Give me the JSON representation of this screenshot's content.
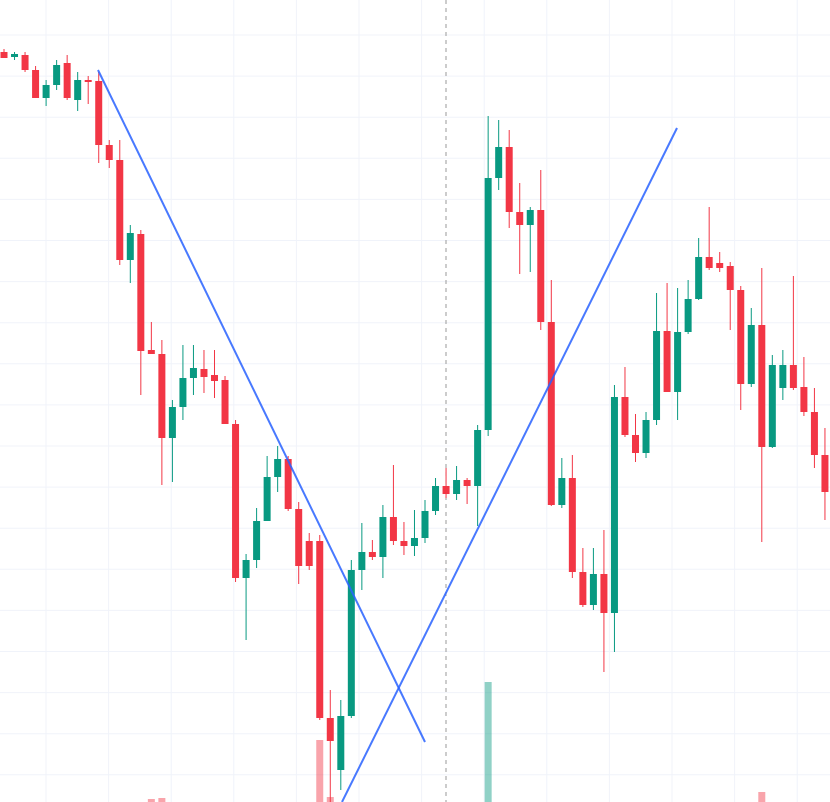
{
  "chart_data": {
    "type": "candlestick",
    "up_color": "#089981",
    "down_color": "#f23645",
    "grid": true,
    "ylim": [
      0,
      802
    ],
    "open": [
      750,
      745,
      747,
      732,
      704,
      717,
      739,
      702,
      722,
      721,
      657,
      642,
      542,
      568,
      452,
      448,
      364,
      395,
      424,
      433,
      427,
      422,
      378,
      224,
      242,
      281,
      325,
      343,
      293,
      261,
      261,
      84,
      32,
      86,
      232,
      250,
      245,
      285,
      261,
      256,
      264,
      291,
      316,
      308,
      322,
      316,
      372,
      624,
      655,
      590,
      577,
      592,
      480,
      297,
      324,
      230,
      197,
      228,
      189,
      405,
      367,
      349,
      382,
      471,
      410,
      470,
      503,
      545,
      539,
      536,
      512,
      418,
      477,
      355,
      414,
      437,
      415,
      390,
      347
    ],
    "high": [
      753,
      750,
      750,
      736,
      722,
      742,
      747,
      730,
      726,
      730,
      662,
      662,
      577,
      572,
      480,
      462,
      402,
      457,
      457,
      452,
      452,
      426,
      382,
      248,
      294,
      346,
      356,
      346,
      300,
      269,
      267,
      112,
      102,
      242,
      279,
      262,
      297,
      337,
      280,
      292,
      302,
      324,
      334,
      336,
      324,
      377,
      686,
      682,
      672,
      619,
      595,
      632,
      522,
      344,
      347,
      254,
      254,
      272,
      417,
      435,
      388,
      390,
      509,
      519,
      514,
      522,
      564,
      595,
      550,
      540,
      516,
      494,
      534,
      447,
      452,
      526,
      445,
      414,
      374
    ],
    "low": [
      744,
      742,
      730,
      704,
      696,
      712,
      702,
      691,
      698,
      639,
      634,
      537,
      519,
      407,
      448,
      317,
      320,
      382,
      407,
      409,
      404,
      378,
      220,
      162,
      234,
      281,
      310,
      291,
      218,
      232,
      82,
      0,
      12,
      84,
      212,
      242,
      224,
      257,
      247,
      246,
      259,
      287,
      304,
      302,
      298,
      276,
      366,
      612,
      574,
      528,
      530,
      472,
      296,
      294,
      224,
      195,
      192,
      130,
      150,
      365,
      340,
      344,
      377,
      410,
      382,
      468,
      502,
      532,
      530,
      472,
      392,
      415,
      260,
      354,
      402,
      412,
      386,
      334,
      282
    ],
    "close": [
      744,
      748,
      732,
      704,
      717,
      737,
      704,
      722,
      720,
      657,
      642,
      542,
      569,
      451,
      448,
      364,
      395,
      424,
      434,
      425,
      421,
      378,
      224,
      242,
      281,
      325,
      343,
      293,
      236,
      236,
      84,
      61,
      86,
      232,
      250,
      245,
      285,
      261,
      256,
      264,
      291,
      316,
      308,
      322,
      316,
      372,
      624,
      655,
      590,
      577,
      592,
      480,
      297,
      324,
      230,
      197,
      228,
      189,
      405,
      367,
      349,
      382,
      471,
      410,
      470,
      503,
      545,
      534,
      534,
      512,
      418,
      477,
      355,
      437,
      437,
      414,
      390,
      347,
      310
    ],
    "volume": [
      0,
      0,
      0,
      0,
      0,
      0,
      0,
      0,
      0,
      0,
      0,
      0,
      0,
      0,
      3,
      4,
      0,
      0,
      0,
      0,
      0,
      0,
      0,
      0,
      0,
      0,
      0,
      0,
      0,
      0,
      62,
      5,
      0,
      0,
      0,
      0,
      0,
      0,
      0,
      0,
      0,
      0,
      0,
      0,
      0,
      0,
      120,
      0,
      0,
      0,
      0,
      0,
      0,
      0,
      0,
      0,
      0,
      0,
      0,
      0,
      0,
      0,
      0,
      0,
      0,
      0,
      0,
      0,
      0,
      0,
      0,
      0,
      10,
      0,
      0,
      0,
      0,
      0,
      0
    ]
  }
}
